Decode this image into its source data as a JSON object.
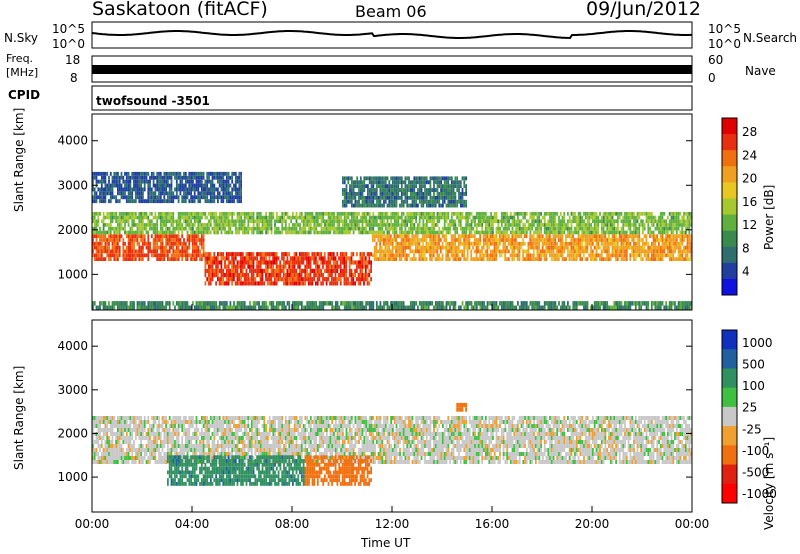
{
  "header": {
    "station": "Saskatoon (fitACF)",
    "beam": "Beam 06",
    "date": "09/Jun/2012"
  },
  "strip_labels": {
    "nsky": "N.Sky",
    "nsearch": "N.Search",
    "freq": "Freq.",
    "freq_unit": "[MHz]",
    "nave": "Nave",
    "cpid": "CPID",
    "cpid_value": "twofsound  -3501"
  },
  "strip_ticks": {
    "nsky_top": "10^5",
    "nsky_bottom": "10^0",
    "nsearch_top": "10^5",
    "nsearch_bottom": "10^0",
    "freq_top": "18",
    "freq_bottom": "8",
    "nave_top": "60",
    "nave_bottom": "0"
  },
  "chart_data": [
    {
      "type": "heatmap",
      "panel": "power",
      "ylabel": "Slant Range [km]",
      "xlabel": "Time UT",
      "x_ticks": [
        "00:00",
        "04:00",
        "08:00",
        "12:00",
        "16:00",
        "20:00",
        "00:00"
      ],
      "y_ticks": [
        1000,
        2000,
        3000,
        4000
      ],
      "ylim": [
        200,
        4600
      ],
      "xlim_hours": [
        0,
        24
      ],
      "colorbar": {
        "label": "Power [dB]",
        "ticks": [
          "4",
          "8",
          "12",
          "16",
          "20",
          "24",
          "28"
        ],
        "colors": [
          "#1010e0",
          "#2040a0",
          "#2e6e6e",
          "#3a8a50",
          "#60b040",
          "#a8c830",
          "#e8c820",
          "#f0a020",
          "#f07010",
          "#e83010",
          "#e00000"
        ]
      },
      "regions": [
        {
          "t0": 0.0,
          "t1": 4.5,
          "r0": 1300,
          "r1": 1900,
          "level": 26
        },
        {
          "t0": 4.5,
          "t1": 11.2,
          "r0": 750,
          "r1": 1500,
          "level": 27
        },
        {
          "t0": 11.2,
          "t1": 24.0,
          "r0": 1300,
          "r1": 1900,
          "level": 22
        },
        {
          "t0": 0.0,
          "t1": 24.0,
          "r0": 1900,
          "r1": 2400,
          "level": 14
        },
        {
          "t0": 0.0,
          "t1": 6.0,
          "r0": 2600,
          "r1": 3300,
          "level": 6
        },
        {
          "t0": 10.0,
          "t1": 15.0,
          "r0": 2500,
          "r1": 3200,
          "level": 8
        },
        {
          "t0": 0.0,
          "t1": 24.0,
          "r0": 200,
          "r1": 400,
          "level": 10
        }
      ]
    },
    {
      "type": "heatmap",
      "panel": "velocity",
      "ylabel": "Slant Range [km]",
      "xlabel": "Time UT",
      "x_ticks": [
        "00:00",
        "04:00",
        "08:00",
        "12:00",
        "16:00",
        "20:00",
        "00:00"
      ],
      "y_ticks": [
        1000,
        2000,
        3000,
        4000
      ],
      "ylim": [
        200,
        4600
      ],
      "xlim_hours": [
        0,
        24
      ],
      "colorbar": {
        "label": "Velocity  [m s⁻¹]",
        "ticks": [
          "1000",
          "500",
          "100",
          "25",
          "-25",
          "-100",
          "-500",
          "-1000"
        ],
        "colors": [
          "#1030c0",
          "#2060a0",
          "#309060",
          "#40c040",
          "#c8c8c8",
          "#f0a030",
          "#f07010",
          "#e02010",
          "#ff0000"
        ]
      },
      "regions": [
        {
          "t0": 0.0,
          "t1": 24.0,
          "r0": 1300,
          "r1": 2400,
          "level": 0
        },
        {
          "t0": 3.0,
          "t1": 8.5,
          "r0": 800,
          "r1": 1500,
          "level": 250
        },
        {
          "t0": 8.5,
          "t1": 11.2,
          "r0": 800,
          "r1": 1500,
          "level": -300
        },
        {
          "t0": 14.5,
          "t1": 15.0,
          "r0": 2500,
          "r1": 2700,
          "level": -300
        }
      ]
    }
  ]
}
